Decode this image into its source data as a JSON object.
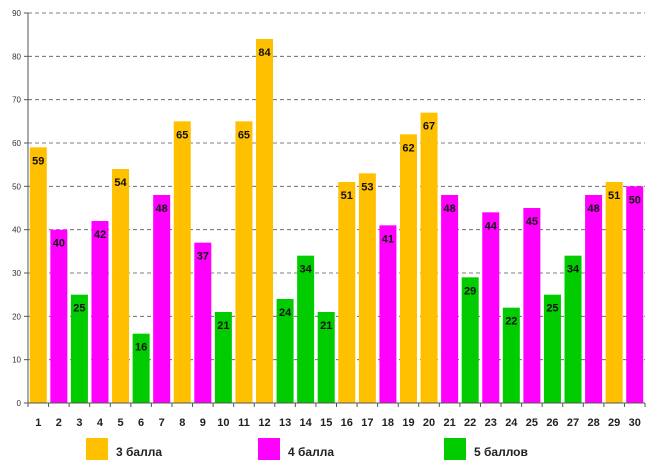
{
  "chart_data": {
    "type": "bar",
    "title": "",
    "xlabel": "",
    "ylabel": "",
    "ylim": [
      0,
      90
    ],
    "ytick_step": 10,
    "grid": true,
    "legend_position": "bottom",
    "categories": [
      "1",
      "2",
      "3",
      "4",
      "5",
      "6",
      "7",
      "8",
      "9",
      "10",
      "11",
      "12",
      "13",
      "14",
      "15",
      "16",
      "17",
      "18",
      "19",
      "20",
      "21",
      "22",
      "23",
      "24",
      "25",
      "26",
      "27",
      "28",
      "29",
      "30"
    ],
    "values": [
      59,
      40,
      25,
      42,
      54,
      16,
      48,
      65,
      37,
      21,
      65,
      84,
      24,
      34,
      21,
      51,
      53,
      41,
      62,
      67,
      48,
      29,
      44,
      22,
      45,
      25,
      34,
      48,
      51,
      50
    ],
    "groups": [
      "3",
      "4",
      "5",
      "4",
      "3",
      "5",
      "4",
      "3",
      "4",
      "5",
      "3",
      "3",
      "5",
      "5",
      "5",
      "3",
      "3",
      "4",
      "3",
      "3",
      "4",
      "5",
      "4",
      "5",
      "4",
      "5",
      "5",
      "4",
      "3",
      "4"
    ],
    "series": [
      {
        "key": "3",
        "name": "3 балла",
        "color": "#FFC000"
      },
      {
        "key": "4",
        "name": "4 балла",
        "color": "#FF00FF"
      },
      {
        "key": "5",
        "name": "5 баллов",
        "color": "#00CC00"
      }
    ]
  }
}
